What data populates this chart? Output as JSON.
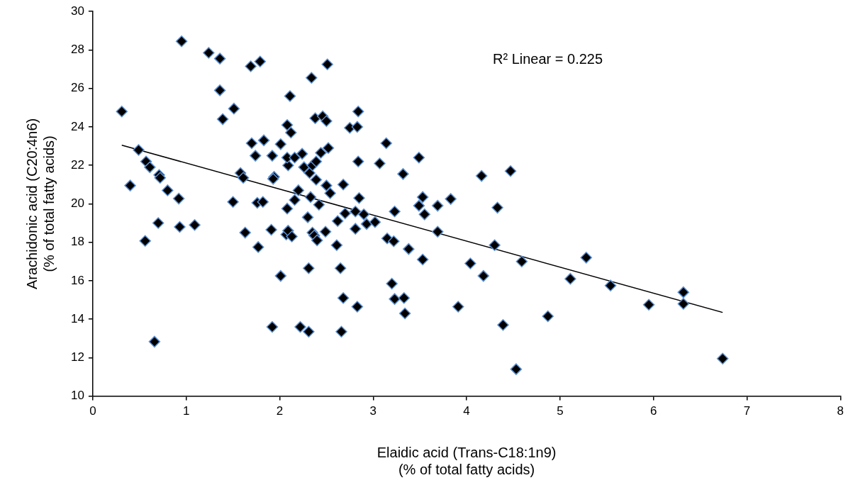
{
  "chart_data": {
    "type": "scatter",
    "xlabel": "Elaidic acid (Trans-C18:1n9)\n(% of total fatty acids)",
    "ylabel": "Arachidonic acid (C20:4n6)\n(% of total fatty acids)",
    "xlim": [
      0,
      8
    ],
    "xticks": [
      0,
      1,
      2,
      3,
      4,
      5,
      6,
      7,
      8
    ],
    "ylim": [
      10,
      30
    ],
    "yticks": [
      10,
      12,
      14,
      16,
      18,
      20,
      22,
      24,
      26,
      28,
      30
    ],
    "marker": "diamond",
    "legend": false,
    "annotations": [
      "R² Linear = 0.225"
    ],
    "series": [
      {
        "color": "#000000",
        "x": [
          0.31,
          0.4,
          0.49,
          0.57,
          0.61,
          0.56,
          0.66,
          0.71,
          0.72,
          0.8,
          0.7,
          0.92,
          0.93,
          1.09,
          0.95,
          1.24,
          1.36,
          1.36,
          1.39,
          1.51,
          1.5,
          1.58,
          1.61,
          1.63,
          1.69,
          1.79,
          1.7,
          1.74,
          1.83,
          1.76,
          1.82,
          1.77,
          1.92,
          1.94,
          1.93,
          1.91,
          1.92,
          2.01,
          2.01,
          2.08,
          2.08,
          2.12,
          2.11,
          2.09,
          2.08,
          2.07,
          2.09,
          2.13,
          2.16,
          2.16,
          2.2,
          2.24,
          2.26,
          2.22,
          2.31,
          2.31,
          2.3,
          2.34,
          2.32,
          2.35,
          2.33,
          2.35,
          2.37,
          2.38,
          2.39,
          2.39,
          2.4,
          2.42,
          2.44,
          2.46,
          2.5,
          2.49,
          2.51,
          2.52,
          2.5,
          2.54,
          2.61,
          2.62,
          2.65,
          2.66,
          2.68,
          2.68,
          2.7,
          2.75,
          2.81,
          2.81,
          2.83,
          2.84,
          2.84,
          2.83,
          2.85,
          2.9,
          2.93,
          3.02,
          3.07,
          3.14,
          3.15,
          3.2,
          3.22,
          3.23,
          3.23,
          3.32,
          3.33,
          3.34,
          3.38,
          3.49,
          3.49,
          3.53,
          3.55,
          3.53,
          3.69,
          3.69,
          3.83,
          3.91,
          4.04,
          4.16,
          4.18,
          4.3,
          4.33,
          4.39,
          4.47,
          4.53,
          4.59,
          4.87,
          5.11,
          5.28,
          5.54,
          5.95,
          6.32,
          6.32,
          6.74
        ],
        "values": [
          24.8,
          20.95,
          22.8,
          22.2,
          21.9,
          18.07,
          12.83,
          21.5,
          21.35,
          20.7,
          19.0,
          20.27,
          18.8,
          18.9,
          28.45,
          27.85,
          27.55,
          25.9,
          24.4,
          24.95,
          20.1,
          21.6,
          21.35,
          18.5,
          27.15,
          27.4,
          23.15,
          22.5,
          23.3,
          20.05,
          20.1,
          17.75,
          22.5,
          21.4,
          21.3,
          18.65,
          13.6,
          23.1,
          16.25,
          19.75,
          24.1,
          23.7,
          25.6,
          22.0,
          22.4,
          18.4,
          18.6,
          18.3,
          22.4,
          20.2,
          20.7,
          22.6,
          21.9,
          13.6,
          13.35,
          16.65,
          19.3,
          26.55,
          21.6,
          22.0,
          20.35,
          18.5,
          18.35,
          24.45,
          22.2,
          21.25,
          18.1,
          19.95,
          22.65,
          24.55,
          24.3,
          18.55,
          27.25,
          22.9,
          20.95,
          20.55,
          17.85,
          19.1,
          16.65,
          13.35,
          21.0,
          15.1,
          19.5,
          23.95,
          19.6,
          18.7,
          24.0,
          24.8,
          22.2,
          14.65,
          20.3,
          19.45,
          18.95,
          19.05,
          22.1,
          23.15,
          18.2,
          15.85,
          18.05,
          19.6,
          15.05,
          21.55,
          15.1,
          14.3,
          17.65,
          22.4,
          19.9,
          20.35,
          19.45,
          17.1,
          19.9,
          18.55,
          20.25,
          14.65,
          16.9,
          21.45,
          16.25,
          17.85,
          19.8,
          13.7,
          21.7,
          11.4,
          17.0,
          14.15,
          16.1,
          17.2,
          15.75,
          14.75,
          15.4,
          14.8,
          11.95
        ]
      },
      {
        "type": "line",
        "color": "#000000",
        "marker": "none",
        "x": [
          0.31,
          6.74
        ],
        "values": [
          23.05,
          14.35
        ]
      }
    ]
  }
}
